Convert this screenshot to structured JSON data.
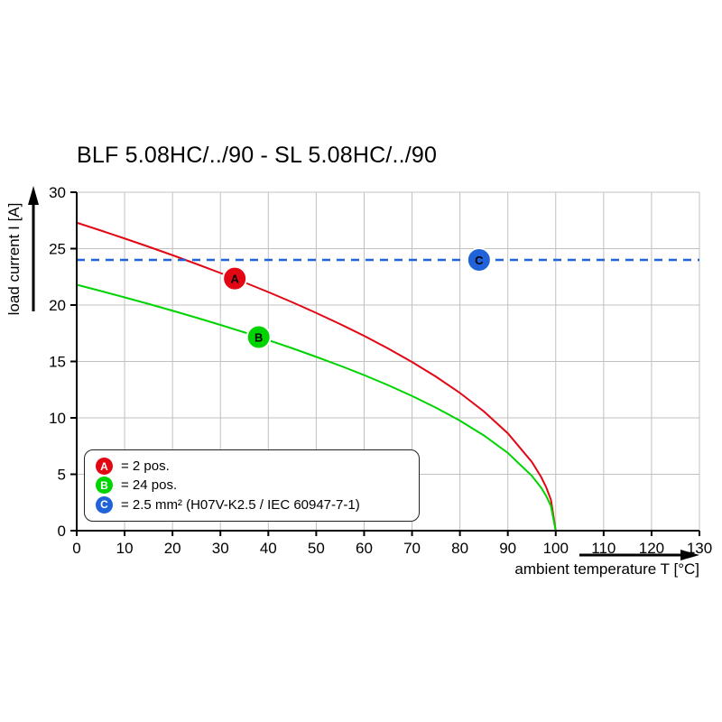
{
  "chart_data": {
    "type": "line",
    "title": "BLF 5.08HC/../90 - SL 5.08HC/../90",
    "xlabel": "ambient temperature T [°C]",
    "ylabel": "load current I [A]",
    "xlim": [
      0,
      130
    ],
    "ylim": [
      0,
      30
    ],
    "xticks": [
      0,
      10,
      20,
      30,
      40,
      50,
      60,
      70,
      80,
      90,
      100,
      110,
      120,
      130
    ],
    "yticks": [
      0,
      5,
      10,
      15,
      20,
      25,
      30
    ],
    "grid": true,
    "grid_color": "#c0c0c0",
    "axis_color": "#000000",
    "legend_position": "lower left",
    "series": [
      {
        "name": "A",
        "label": "= 2 pos.",
        "color": "#e30613",
        "style": "solid",
        "width": 2,
        "marker": {
          "x": 33,
          "y": 22.35
        },
        "points": [
          [
            0,
            27.3
          ],
          [
            5,
            26.61
          ],
          [
            10,
            25.9
          ],
          [
            15,
            25.17
          ],
          [
            20,
            24.42
          ],
          [
            25,
            23.64
          ],
          [
            30,
            22.84
          ],
          [
            35,
            22.01
          ],
          [
            40,
            21.15
          ],
          [
            45,
            20.25
          ],
          [
            50,
            19.3
          ],
          [
            55,
            18.31
          ],
          [
            60,
            17.27
          ],
          [
            65,
            16.15
          ],
          [
            70,
            14.95
          ],
          [
            75,
            13.65
          ],
          [
            80,
            12.21
          ],
          [
            85,
            10.57
          ],
          [
            90,
            8.63
          ],
          [
            95,
            6.1
          ],
          [
            97,
            4.73
          ],
          [
            98,
            3.86
          ],
          [
            99,
            2.73
          ],
          [
            100,
            0
          ]
        ]
      },
      {
        "name": "B",
        "label": "= 24 pos.",
        "color": "#00d400",
        "style": "solid",
        "width": 2,
        "marker": {
          "x": 38,
          "y": 17.16
        },
        "points": [
          [
            0,
            21.8
          ],
          [
            5,
            21.25
          ],
          [
            10,
            20.68
          ],
          [
            15,
            20.1
          ],
          [
            20,
            19.5
          ],
          [
            25,
            18.88
          ],
          [
            30,
            18.24
          ],
          [
            35,
            17.58
          ],
          [
            40,
            16.89
          ],
          [
            45,
            16.17
          ],
          [
            50,
            15.41
          ],
          [
            55,
            14.62
          ],
          [
            60,
            13.79
          ],
          [
            65,
            12.9
          ],
          [
            70,
            11.94
          ],
          [
            75,
            10.9
          ],
          [
            80,
            9.75
          ],
          [
            85,
            8.44
          ],
          [
            90,
            6.89
          ],
          [
            95,
            4.87
          ],
          [
            97,
            3.78
          ],
          [
            98,
            3.08
          ],
          [
            99,
            2.18
          ],
          [
            100,
            0
          ]
        ]
      },
      {
        "name": "C",
        "label": "= 2.5 mm² (H07V-K2.5 / IEC 60947-7-1)",
        "color": "#2062d9",
        "style": "dashed",
        "width": 2.5,
        "marker": {
          "x": 84,
          "y": 24
        },
        "points": [
          [
            0,
            24
          ],
          [
            130,
            24
          ]
        ]
      }
    ]
  }
}
